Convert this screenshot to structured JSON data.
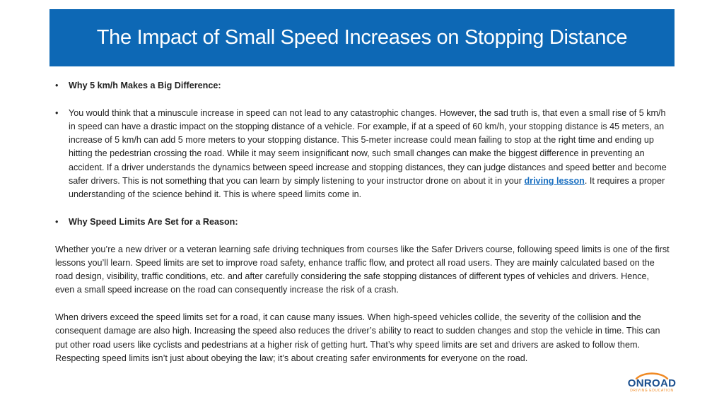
{
  "title": "The Impact of Small Speed Increases on Stopping Distance",
  "section1_heading": "Why 5 km/h Makes a Big Difference:",
  "section1_body_before_link": "You would think that a minuscule increase in speed can not lead to any catastrophic changes. However, the sad truth is, that even a small rise of 5 km/h in speed can have a drastic impact on the stopping distance of a vehicle. For example, if at a speed of 60 km/h, your stopping distance is 45 meters, an increase of 5 km/h can add 5 more meters to your stopping distance. This 5-meter increase could mean failing to stop at the right time and ending up hitting the pedestrian crossing the road. While it may seem insignificant now, such small changes can make the biggest difference in preventing an accident. If a driver understands the dynamics between speed increase and stopping distances, they can judge distances and speed better and become safer drivers. This is not something that you can learn by simply listening to your instructor drone on about it in your ",
  "section1_link": "driving lesson",
  "section1_body_after_link": ". It requires a proper understanding of the science behind it. This is where speed limits come in.",
  "section2_heading": "Why Speed Limits Are Set for a Reason:",
  "paragraph2": "Whether you’re a new driver or a veteran learning safe driving techniques from courses like the Safer Drivers course, following speed limits is one of the first lessons you’ll learn. Speed limits are set to improve road safety, enhance traffic flow, and protect all road users. They are mainly calculated based on the road design, visibility, traffic conditions, etc. and after carefully considering the safe stopping distances of different types of vehicles and drivers. Hence, even a small speed increase on the road can consequently increase the risk of a crash.",
  "paragraph3": "When drivers exceed the speed limits set for a road, it can cause many issues. When high-speed vehicles collide, the severity of the collision and the consequent damage are also high. Increasing the speed also reduces the driver’s ability to react to sudden changes and stop the vehicle in time. This can put other road users like cyclists and pedestrians at a higher risk of getting hurt. That’s why speed limits are set and drivers are asked to follow them. Respecting speed limits isn’t just about obeying the law; it’s about creating safer environments for everyone on the road.",
  "bullet_symbol": "•",
  "logo": {
    "word": "ONROAD",
    "tagline": "DRIVING EDUCATION"
  },
  "colors": {
    "title_bar": "#0d68b5",
    "link": "#1a6fc0",
    "logo_blue": "#1b4f8e",
    "logo_orange": "#f08a24"
  }
}
